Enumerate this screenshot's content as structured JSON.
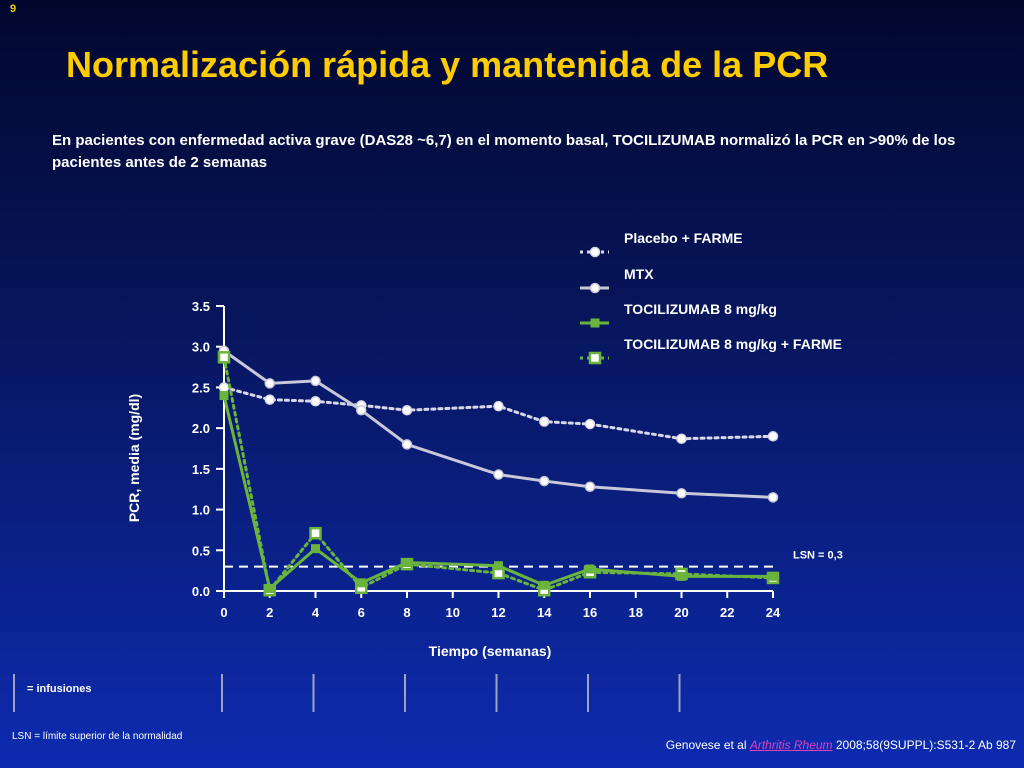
{
  "slide_number": "9",
  "title": "Normalización rápida y mantenida de la PCR",
  "subtitle": "En pacientes con enfermedad activa grave (DAS28 ~6,7) en el momento basal, TOCILIZUMAB normalizó la PCR en >90% de los pacientes antes de 2 semanas",
  "infusion_legend": "= infusiones",
  "footnote": "LSN = límite superior de la normalidad",
  "citation": {
    "prefix": "Genovese et al ",
    "journal": "Arthritis Rheum",
    "suffix": " 2008;58(9SUPPL):S531-2 Ab 987"
  },
  "colors": {
    "title": "#ffcc00",
    "placebo": "#d8d8e8",
    "mtx": "#c8c8d8",
    "tcz": "#6ab43e",
    "tcz_farme": "#6ab43e"
  },
  "chart_data": {
    "type": "line",
    "xlabel": "Tiempo (semanas)",
    "ylabel": "PCR, media (mg/dl)",
    "xlim": [
      0,
      24
    ],
    "ylim": [
      0,
      3.5
    ],
    "x_ticks": [
      "0",
      "2",
      "4",
      "6",
      "8",
      "10",
      "12",
      "14",
      "16",
      "18",
      "20",
      "22",
      "24"
    ],
    "y_ticks": [
      "0.0",
      "0.5",
      "1.0",
      "1.5",
      "2.0",
      "2.5",
      "3.0",
      "3.5"
    ],
    "reference_line": {
      "value": 0.3,
      "label": "LSN = 0,3"
    },
    "infusion_weeks": [
      0,
      4,
      8,
      12,
      16,
      20
    ],
    "legend_position": "top-right",
    "series": [
      {
        "name": "Placebo + FARME",
        "style": "dotted",
        "marker": "circle",
        "x": [
          0,
          2,
          4,
          6,
          8,
          12,
          14,
          16,
          20,
          24
        ],
        "y": [
          2.5,
          2.35,
          2.33,
          2.28,
          2.22,
          2.27,
          2.08,
          2.05,
          1.87,
          1.9
        ]
      },
      {
        "name": "MTX",
        "style": "solid",
        "marker": "circle",
        "x": [
          0,
          2,
          4,
          6,
          8,
          12,
          14,
          16,
          20,
          24
        ],
        "y": [
          2.95,
          2.55,
          2.58,
          2.22,
          1.8,
          1.43,
          1.35,
          1.28,
          1.2,
          1.15
        ]
      },
      {
        "name": "TOCILIZUMAB 8 mg/kg",
        "style": "solid",
        "marker": "square",
        "x": [
          0,
          2,
          4,
          6,
          8,
          12,
          14,
          16,
          20,
          24
        ],
        "y": [
          2.4,
          0.03,
          0.52,
          0.1,
          0.35,
          0.31,
          0.07,
          0.27,
          0.18,
          0.18
        ]
      },
      {
        "name": "TOCILIZUMAB 8 mg/kg + FARME",
        "style": "dotted",
        "marker": "square",
        "x": [
          0,
          2,
          4,
          6,
          8,
          12,
          14,
          16,
          20,
          24
        ],
        "y": [
          2.87,
          0.01,
          0.71,
          0.04,
          0.33,
          0.22,
          0.01,
          0.23,
          0.21,
          0.16
        ]
      }
    ]
  }
}
